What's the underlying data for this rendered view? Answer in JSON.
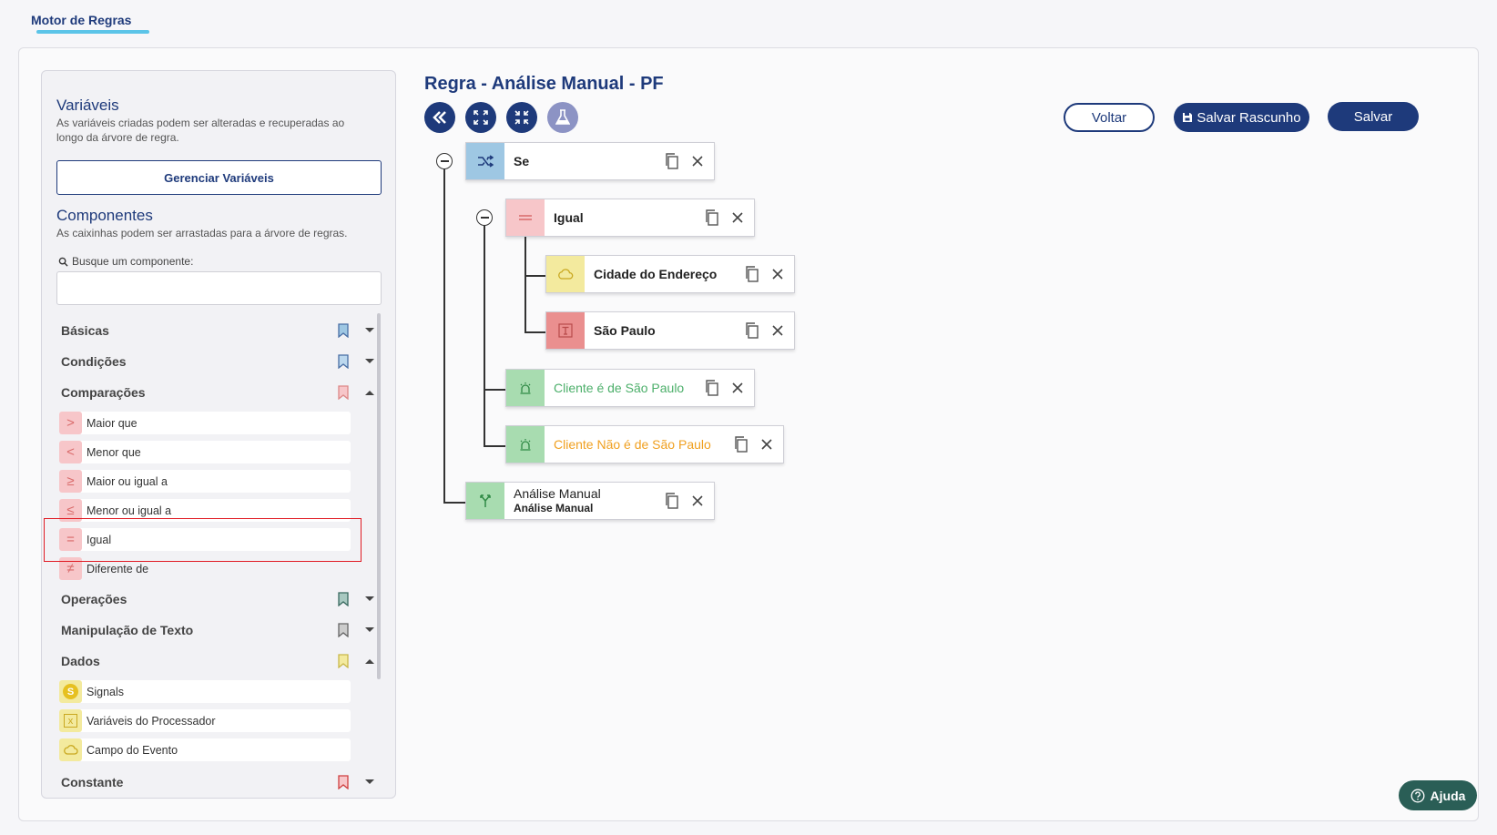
{
  "header": {
    "tab": "Motor de Regras"
  },
  "sidebar": {
    "variables_title": "Variáveis",
    "variables_desc_1": "As variáveis criadas podem ser alteradas e recuperadas ao",
    "variables_desc_2": "longo da árvore de regra.",
    "manage_button": "Gerenciar Variáveis",
    "components_title": "Componentes",
    "components_desc": "As caixinhas podem ser arrastadas para a árvore de regras.",
    "search_label": "Busque um componente:",
    "search_value": "",
    "categories": {
      "basicas": "Básicas",
      "condicoes": "Condições",
      "comparacoes": "Comparações",
      "operacoes": "Operações",
      "manipulacao": "Manipulação de Texto",
      "dados": "Dados",
      "constante": "Constante"
    },
    "comparison_items": [
      {
        "label": "Maior que",
        "symbol": ">"
      },
      {
        "label": "Menor que",
        "symbol": "<"
      },
      {
        "label": "Maior ou igual a",
        "symbol": "≥"
      },
      {
        "label": "Menor ou igual a",
        "symbol": "≤"
      },
      {
        "label": "Igual",
        "symbol": "="
      },
      {
        "label": "Diferente de",
        "symbol": "≠"
      }
    ],
    "data_items": [
      {
        "label": "Signals",
        "symbol": "S"
      },
      {
        "label": "Variáveis do Processador",
        "symbol": "x"
      },
      {
        "label": "Campo do Evento",
        "symbol": "☁"
      }
    ]
  },
  "main": {
    "title": "Regra - Análise Manual - PF",
    "buttons": {
      "back": "Voltar",
      "save_draft": "Salvar Rascunho",
      "save": "Salvar"
    },
    "nodes": {
      "se": "Se",
      "igual": "Igual",
      "cidade": "Cidade do Endereço",
      "sao_paulo": "São Paulo",
      "cliente_sp": "Cliente é de São Paulo",
      "cliente_nao_sp": "Cliente Não é de São Paulo",
      "analise_title": "Análise Manual",
      "analise_sub": "Análise Manual"
    }
  },
  "help_label": "Ajuda",
  "colors": {
    "primary": "#1e3a7b",
    "comparison_bg": "#f7c6c9",
    "data_bg": "#f3ea9e",
    "condition_bg": "#9ec7e3",
    "action_bg": "#a8dcb0",
    "constant_bg": "#ea8f8f",
    "green_text": "#4caf6a",
    "orange_text": "#f0a020"
  }
}
